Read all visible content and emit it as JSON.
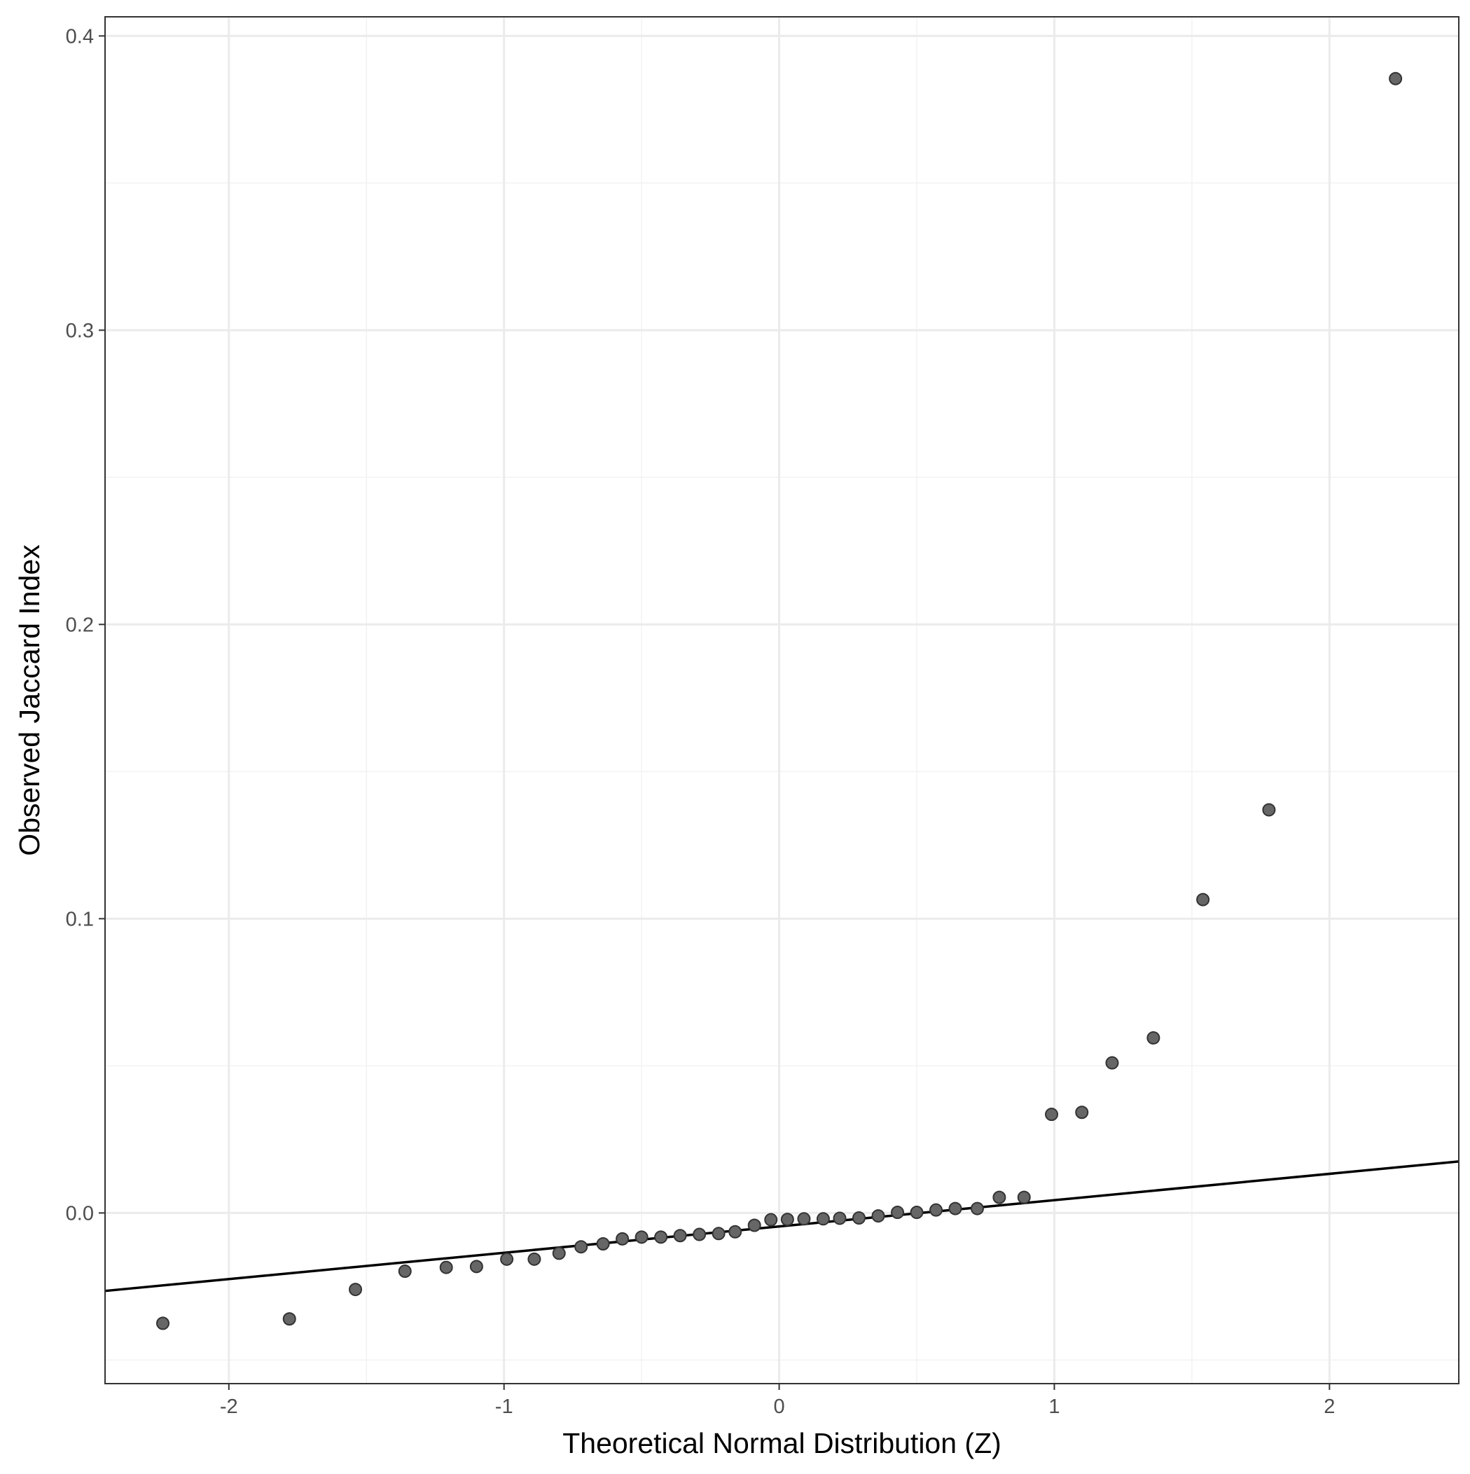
{
  "colors": {
    "background": "#ffffff",
    "panel_border": "#333333",
    "grid_major": "#ebebeb",
    "grid_minor": "#f2f2f2",
    "point_fill": "#666666",
    "point_stroke": "#333333",
    "line": "#000000",
    "tick_text": "#4d4d4d"
  },
  "chart_data": {
    "type": "scatter",
    "title": "",
    "xlabel": "Theoretical Normal Distribution (Z)",
    "ylabel": "Observed Jaccard Index",
    "xlim": [
      -2.45,
      2.47
    ],
    "ylim": [
      -0.058,
      0.4065
    ],
    "x_ticks": [
      -2,
      -1,
      0,
      1,
      2
    ],
    "x_tick_labels": [
      "-2",
      "-1",
      "0",
      "1",
      "2"
    ],
    "y_ticks": [
      0.0,
      0.1,
      0.2,
      0.3,
      0.4
    ],
    "y_tick_labels": [
      "0.0",
      "0.1",
      "0.2",
      "0.3",
      "0.4"
    ],
    "grid": true,
    "legend": "none",
    "reference_line": {
      "x": [
        -2.45,
        2.47
      ],
      "y": [
        -0.0265,
        0.0175
      ]
    },
    "points": [
      {
        "x": -2.24,
        "y": -0.0375
      },
      {
        "x": -1.78,
        "y": -0.036
      },
      {
        "x": -1.54,
        "y": -0.026
      },
      {
        "x": -1.36,
        "y": -0.0198
      },
      {
        "x": -1.21,
        "y": -0.0185
      },
      {
        "x": -1.1,
        "y": -0.0182
      },
      {
        "x": -0.99,
        "y": -0.0157
      },
      {
        "x": -0.89,
        "y": -0.0157
      },
      {
        "x": -0.8,
        "y": -0.0137
      },
      {
        "x": -0.72,
        "y": -0.0115
      },
      {
        "x": -0.64,
        "y": -0.0105
      },
      {
        "x": -0.57,
        "y": -0.0088
      },
      {
        "x": -0.5,
        "y": -0.0082
      },
      {
        "x": -0.43,
        "y": -0.0082
      },
      {
        "x": -0.36,
        "y": -0.0077
      },
      {
        "x": -0.29,
        "y": -0.0073
      },
      {
        "x": -0.22,
        "y": -0.007
      },
      {
        "x": -0.16,
        "y": -0.0064
      },
      {
        "x": -0.09,
        "y": -0.0042
      },
      {
        "x": -0.03,
        "y": -0.0023
      },
      {
        "x": 0.03,
        "y": -0.0022
      },
      {
        "x": 0.09,
        "y": -0.002
      },
      {
        "x": 0.16,
        "y": -0.002
      },
      {
        "x": 0.22,
        "y": -0.0018
      },
      {
        "x": 0.29,
        "y": -0.0017
      },
      {
        "x": 0.36,
        "y": -0.001
      },
      {
        "x": 0.43,
        "y": 0.0002
      },
      {
        "x": 0.5,
        "y": 0.0002
      },
      {
        "x": 0.57,
        "y": 0.001
      },
      {
        "x": 0.64,
        "y": 0.0015
      },
      {
        "x": 0.72,
        "y": 0.0015
      },
      {
        "x": 0.8,
        "y": 0.0053
      },
      {
        "x": 0.89,
        "y": 0.0053
      },
      {
        "x": 0.99,
        "y": 0.0335
      },
      {
        "x": 1.1,
        "y": 0.0342
      },
      {
        "x": 1.21,
        "y": 0.051
      },
      {
        "x": 1.36,
        "y": 0.0595
      },
      {
        "x": 1.54,
        "y": 0.1065
      },
      {
        "x": 1.78,
        "y": 0.137
      },
      {
        "x": 2.24,
        "y": 0.3855
      }
    ]
  }
}
